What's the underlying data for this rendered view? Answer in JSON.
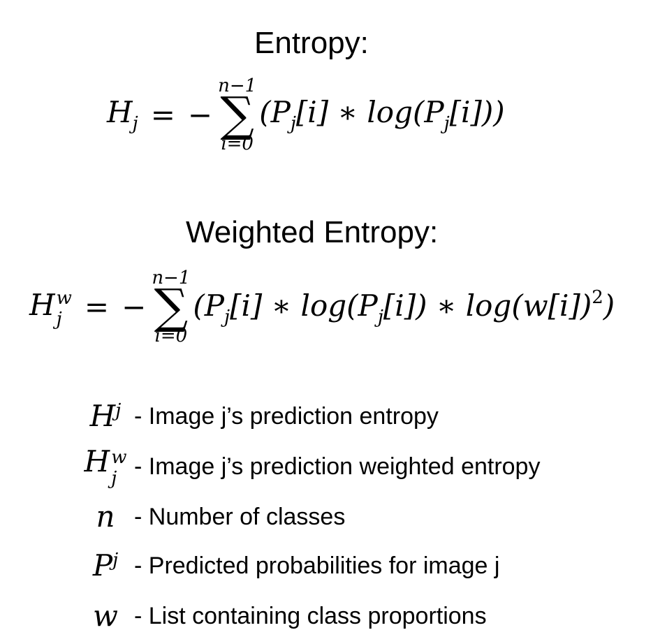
{
  "entropy": {
    "title": "Entropy:",
    "lhs": {
      "symbol": "H",
      "sub": "j"
    },
    "equals": "=",
    "minus": "−",
    "sum": {
      "upper": "n−1",
      "sigma": "∑",
      "lower": "i=0"
    },
    "body": "(P_j[i] ∗ log(P_j[i]))"
  },
  "weighted_entropy": {
    "title": "Weighted Entropy:",
    "lhs": {
      "symbol": "H",
      "sub": "j",
      "sup": "w"
    },
    "equals": "=",
    "minus": "−",
    "sum": {
      "upper": "n−1",
      "sigma": "∑",
      "lower": "i=0"
    },
    "body": "(P_j[i] ∗ log(P_j[i]) ∗ log(w[i])^2)"
  },
  "legend": [
    {
      "symbol": "H",
      "sub": "j",
      "sup": "",
      "description": "- Image j’s prediction entropy"
    },
    {
      "symbol": "H",
      "sub": "j",
      "sup": "w",
      "description": "- Image j’s prediction weighted entropy"
    },
    {
      "symbol": "n",
      "sub": "",
      "sup": "",
      "description": "- Number of classes"
    },
    {
      "symbol": "P",
      "sub": "j",
      "sup": "",
      "description": "- Predicted probabilities for image j"
    },
    {
      "symbol": "w",
      "sub": "",
      "sup": "",
      "description": "- List containing class proportions"
    }
  ]
}
